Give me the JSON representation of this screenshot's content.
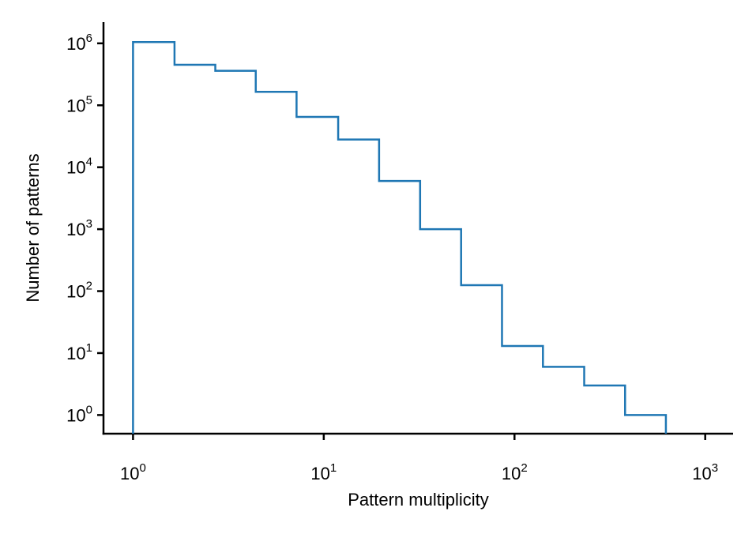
{
  "chart_data": {
    "type": "histogram",
    "title": "",
    "xlabel": "Pattern multiplicity",
    "ylabel": "Number of patterns",
    "xscale": "log",
    "yscale": "log",
    "xlim": [
      0.7,
      1400
    ],
    "ylim": [
      0.5,
      2200000
    ],
    "grid": false,
    "legend": "none",
    "line_color": "#1f77b4",
    "x_ticks": [
      {
        "base": "10",
        "exp": "0",
        "value": 1
      },
      {
        "base": "10",
        "exp": "1",
        "value": 10
      },
      {
        "base": "10",
        "exp": "2",
        "value": 100
      },
      {
        "base": "10",
        "exp": "3",
        "value": 1000
      }
    ],
    "y_ticks": [
      {
        "base": "10",
        "exp": "0",
        "value": 1
      },
      {
        "base": "10",
        "exp": "1",
        "value": 10
      },
      {
        "base": "10",
        "exp": "2",
        "value": 100
      },
      {
        "base": "10",
        "exp": "3",
        "value": 1000
      },
      {
        "base": "10",
        "exp": "4",
        "value": 10000
      },
      {
        "base": "10",
        "exp": "5",
        "value": 100000
      },
      {
        "base": "10",
        "exp": "6",
        "value": 1000000
      }
    ],
    "bin_edges": [
      1,
      1.65,
      2.7,
      4.4,
      7.2,
      11.9,
      19.5,
      32,
      52.5,
      86,
      141,
      232,
      380,
      622
    ],
    "counts": [
      1050000,
      450000,
      360000,
      165000,
      65000,
      28000,
      6000,
      1000,
      125,
      13,
      6,
      3,
      1
    ]
  }
}
